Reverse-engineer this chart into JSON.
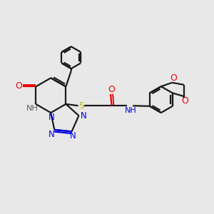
{
  "bg_color": "#e8e8e8",
  "bond_color": "#1a1a1a",
  "N_color": "#0000ee",
  "O_color": "#ee0000",
  "S_color": "#bbbb00",
  "H_color": "#606060",
  "line_width": 1.6,
  "figsize": [
    3.0,
    3.0
  ],
  "dpi": 100,
  "xlim": [
    0,
    10
  ],
  "ylim": [
    0,
    10
  ]
}
